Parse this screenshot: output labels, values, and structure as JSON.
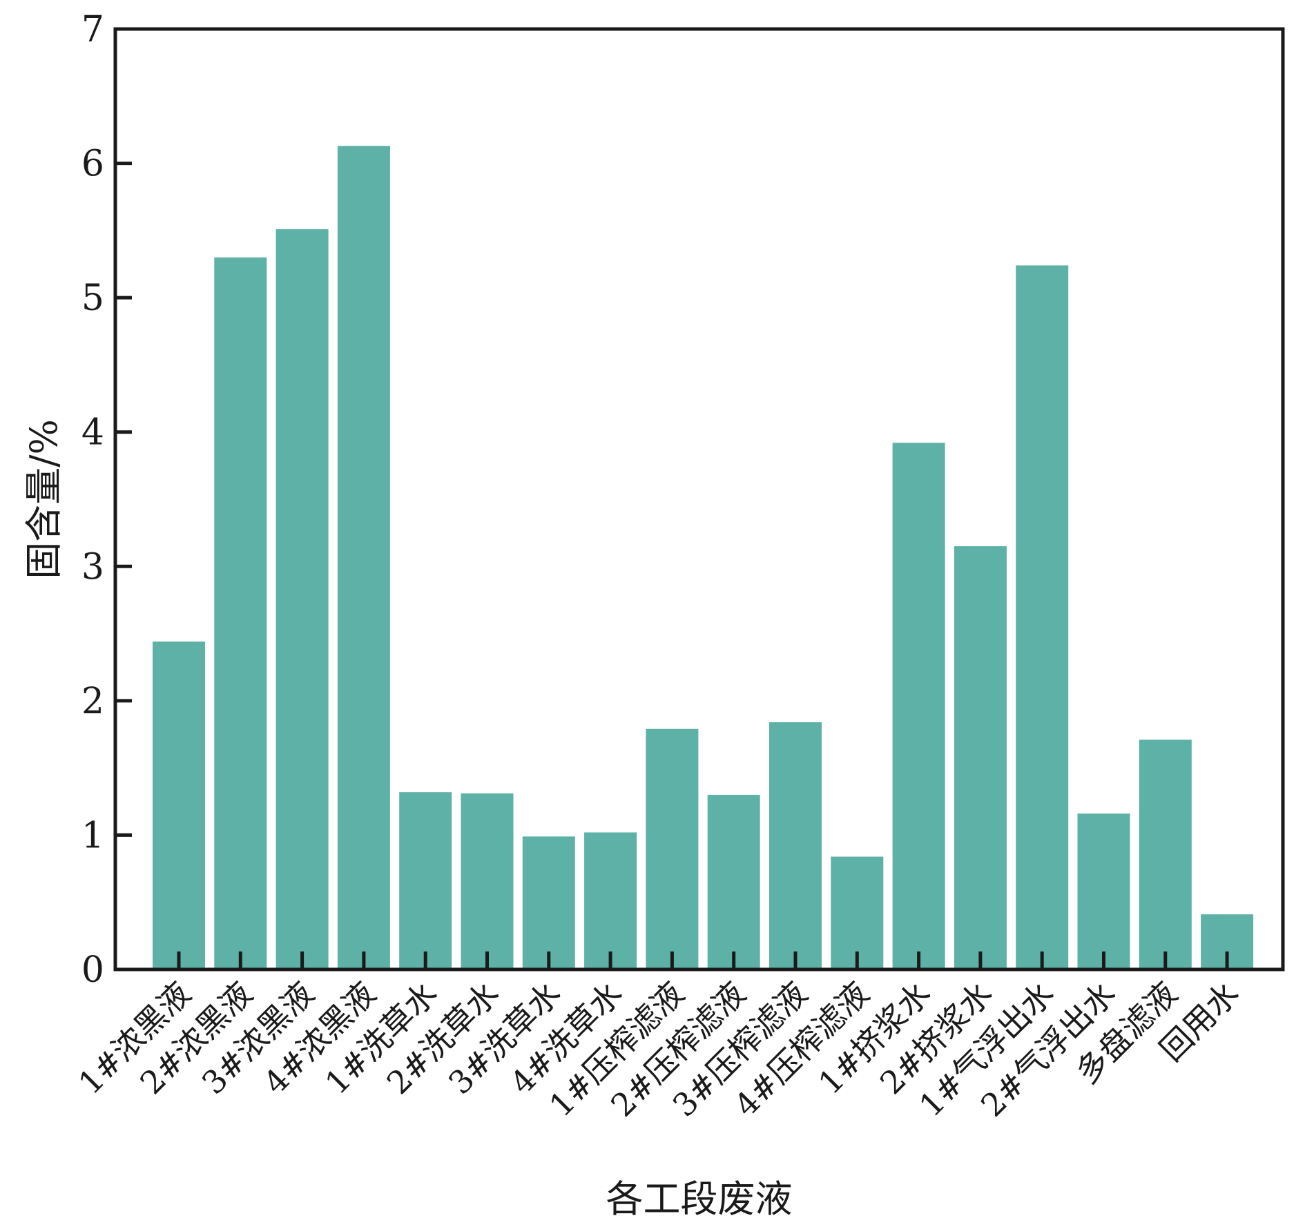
{
  "chart_data": {
    "type": "bar",
    "title": "",
    "xlabel": "各工段废液",
    "ylabel": "固含量/%",
    "ylim": [
      0,
      7
    ],
    "yticks": [
      "0",
      "1",
      "2",
      "3",
      "4",
      "5",
      "6",
      "7"
    ],
    "grid": false,
    "bar_color": "#5db1a7",
    "categories": [
      "1#浓黑液",
      "2#浓黑液",
      "3#浓黑液",
      "4#浓黑液",
      "1#洗草水",
      "2#洗草水",
      "3#洗草水",
      "4#洗草水",
      "1#压榨滤液",
      "2#压榨滤液",
      "3#压榨滤液",
      "4#压榨滤液",
      "1#挤浆水",
      "2#挤浆水",
      "1#气浮出水",
      "2#气浮出水",
      "多盘滤液",
      "回用水"
    ],
    "values": [
      2.44,
      5.3,
      5.51,
      6.13,
      1.32,
      1.31,
      0.99,
      1.02,
      1.79,
      1.3,
      1.84,
      0.84,
      3.92,
      3.15,
      5.24,
      1.16,
      1.71,
      0.41
    ]
  }
}
